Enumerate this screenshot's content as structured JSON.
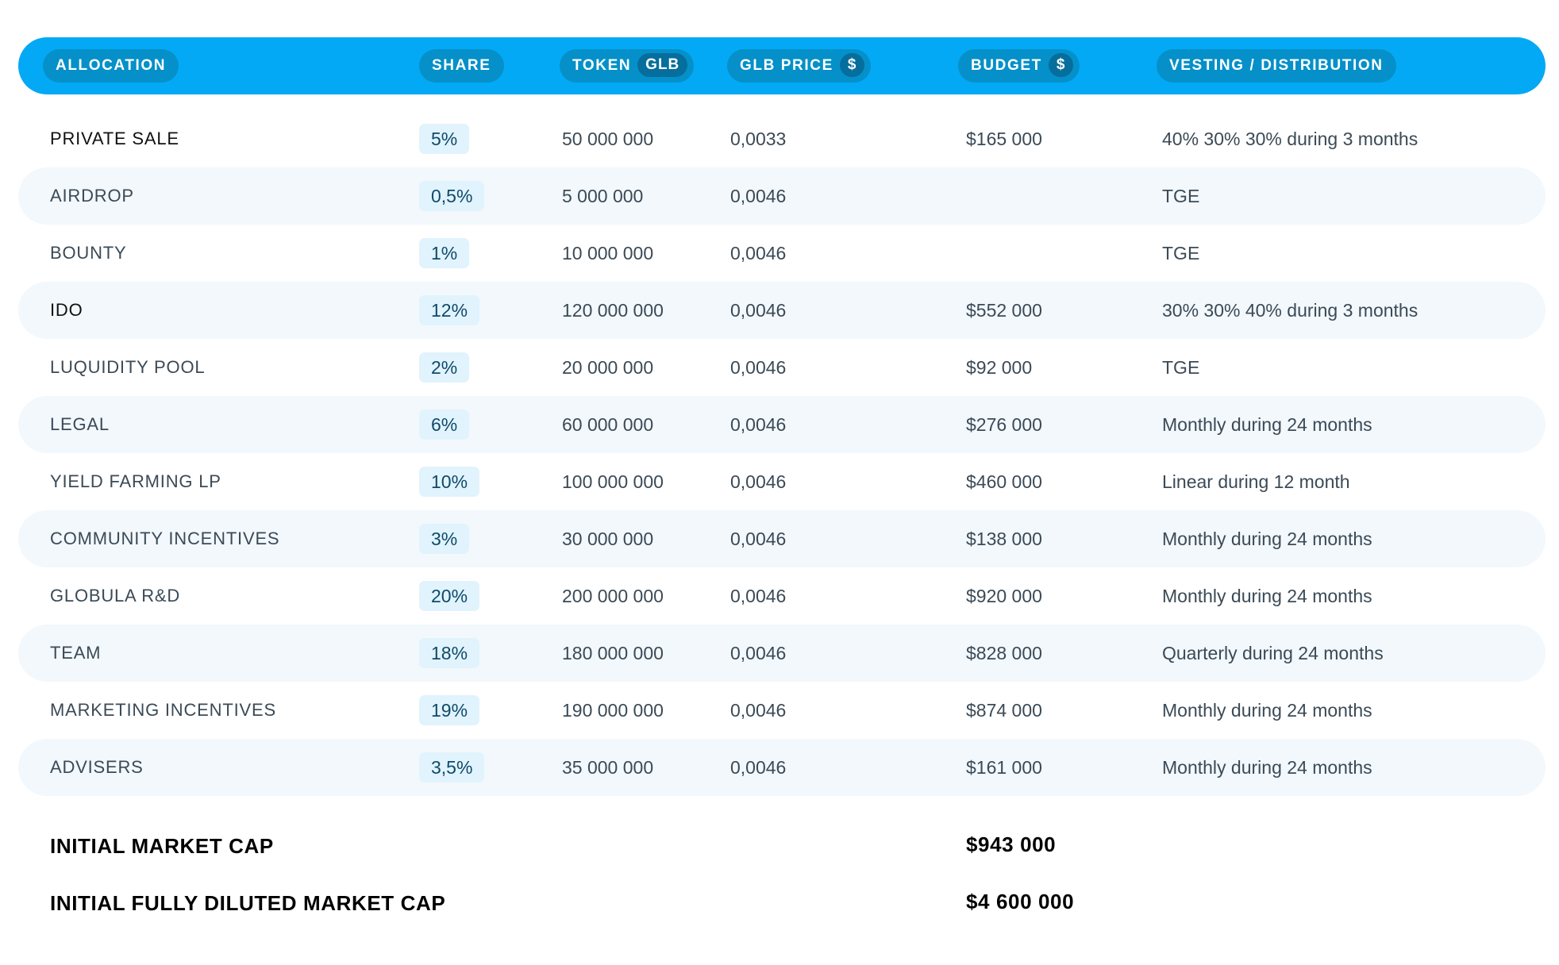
{
  "header": {
    "allocation": "ALLOCATION",
    "share": "SHARE",
    "token": "TOKEN",
    "token_badge": "GLB",
    "glb_price": "GLB PRICE",
    "glb_price_badge": "$",
    "budget": "BUDGET",
    "budget_badge": "$",
    "vesting": "VESTING / DISTRIBUTION"
  },
  "rows": [
    {
      "allocation": "PRIVATE SALE",
      "share": "5%",
      "tokens": "50 000 000",
      "price": "0,0033",
      "budget": "$165 000",
      "vesting": "40% 30% 30% during 3 months"
    },
    {
      "allocation": "AIRDROP",
      "share": "0,5%",
      "tokens": "5 000 000",
      "price": "0,0046",
      "budget": "",
      "vesting": "TGE"
    },
    {
      "allocation": "BOUNTY",
      "share": "1%",
      "tokens": "10 000 000",
      "price": "0,0046",
      "budget": "",
      "vesting": "TGE"
    },
    {
      "allocation": "IDO",
      "share": "12%",
      "tokens": "120 000 000",
      "price": "0,0046",
      "budget": "$552 000",
      "vesting": "30% 30% 40% during 3 months"
    },
    {
      "allocation": "LUQUIDITY POOL",
      "share": "2%",
      "tokens": "20 000 000",
      "price": "0,0046",
      "budget": "$92 000",
      "vesting": "TGE"
    },
    {
      "allocation": "LEGAL",
      "share": "6%",
      "tokens": "60 000 000",
      "price": "0,0046",
      "budget": "$276 000",
      "vesting": "Monthly during 24 months"
    },
    {
      "allocation": "YIELD FARMING LP",
      "share": "10%",
      "tokens": "100 000 000",
      "price": "0,0046",
      "budget": "$460 000",
      "vesting": "Linear during 12 month"
    },
    {
      "allocation": "COMMUNITY INCENTIVES",
      "share": "3%",
      "tokens": "30 000 000",
      "price": "0,0046",
      "budget": "$138 000",
      "vesting": "Monthly during 24 months"
    },
    {
      "allocation": "GLOBULA R&D",
      "share": "20%",
      "tokens": "200 000 000",
      "price": "0,0046",
      "budget": "$920 000",
      "vesting": "Monthly during 24 months"
    },
    {
      "allocation": "TEAM",
      "share": "18%",
      "tokens": "180 000 000",
      "price": "0,0046",
      "budget": "$828 000",
      "vesting": "Quarterly during 24 months"
    },
    {
      "allocation": "MARKETING INCENTIVES",
      "share": "19%",
      "tokens": "190 000 000",
      "price": "0,0046",
      "budget": "$874 000",
      "vesting": "Monthly during 24 months"
    },
    {
      "allocation": "ADVISERS",
      "share": "3,5%",
      "tokens": "35 000 000",
      "price": "0,0046",
      "budget": "$161 000",
      "vesting": "Monthly during 24 months"
    }
  ],
  "totals": {
    "initial_market_cap_label": "INITIAL MARKET CAP",
    "initial_market_cap_value": "$943 000",
    "fully_diluted_label": "INITIAL FULLY DILUTED MARKET CAP",
    "fully_diluted_value": "$4 600 000"
  },
  "colors": {
    "header_bg": "#03a9f4",
    "header_pill": "#0590c9",
    "row_shade": "#f2f8fc",
    "share_badge": "#e1f3fc"
  }
}
